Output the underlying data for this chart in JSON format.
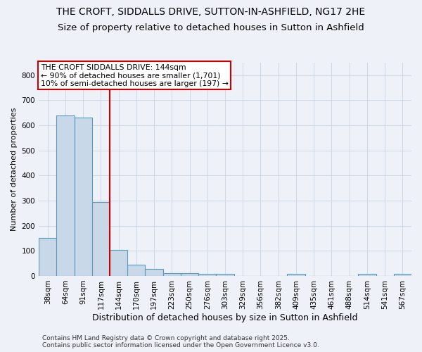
{
  "title": "THE CROFT, SIDDALLS DRIVE, SUTTON-IN-ASHFIELD, NG17 2HE",
  "subtitle": "Size of property relative to detached houses in Sutton in Ashfield",
  "xlabel": "Distribution of detached houses by size in Sutton in Ashfield",
  "ylabel": "Number of detached properties",
  "categories": [
    "38sqm",
    "64sqm",
    "91sqm",
    "117sqm",
    "144sqm",
    "170sqm",
    "197sqm",
    "223sqm",
    "250sqm",
    "276sqm",
    "303sqm",
    "329sqm",
    "356sqm",
    "382sqm",
    "409sqm",
    "435sqm",
    "461sqm",
    "488sqm",
    "514sqm",
    "541sqm",
    "567sqm"
  ],
  "values": [
    150,
    640,
    630,
    295,
    103,
    45,
    28,
    10,
    10,
    8,
    8,
    0,
    0,
    0,
    8,
    0,
    0,
    0,
    8,
    0,
    8
  ],
  "bar_color": "#c8d8e8",
  "bar_edge_color": "#5a9abf",
  "red_line_index": 3,
  "red_line_label_title": "THE CROFT SIDDALLS DRIVE: 144sqm",
  "red_line_label_line1": "← 90% of detached houses are smaller (1,701)",
  "red_line_label_line2": "10% of semi-detached houses are larger (197) →",
  "annotation_box_color": "#ffffff",
  "annotation_box_edge": "#cc0000",
  "red_line_color": "#cc0000",
  "ylim": [
    0,
    850
  ],
  "yticks": [
    0,
    100,
    200,
    300,
    400,
    500,
    600,
    700,
    800
  ],
  "grid_color": "#d0d8e8",
  "background_color": "#eef2f8",
  "footer1": "Contains HM Land Registry data © Crown copyright and database right 2025.",
  "footer2": "Contains public sector information licensed under the Open Government Licence v3.0.",
  "title_fontsize": 10,
  "subtitle_fontsize": 9.5,
  "xlabel_fontsize": 9,
  "ylabel_fontsize": 8,
  "tick_fontsize": 7.5,
  "footer_fontsize": 6.5
}
